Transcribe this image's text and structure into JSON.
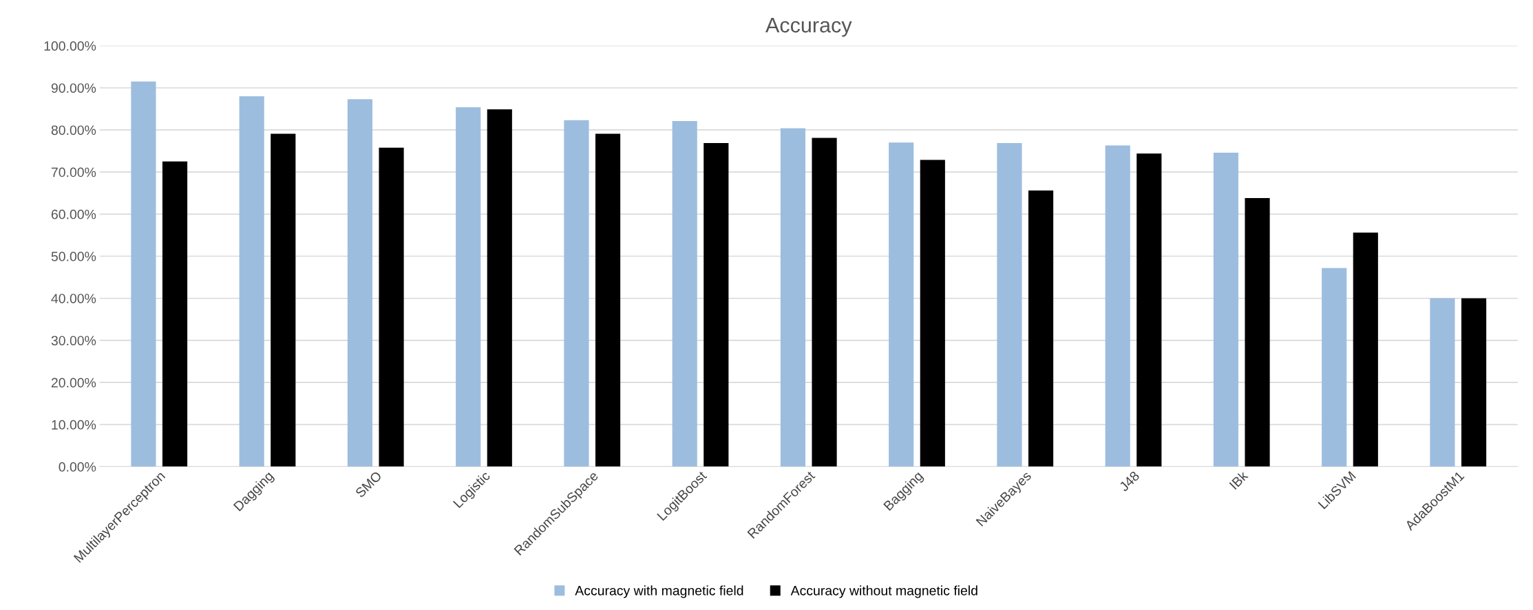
{
  "chart_data": {
    "type": "bar",
    "title": "Accuracy",
    "categories": [
      "MultilayerPerceptron",
      "Dagging",
      "SMO",
      "Logistic",
      "RandomSubSpace",
      "LogitBoost",
      "RandomForest",
      "Bagging",
      "NaiveBayes",
      "J48",
      "IBk",
      "LibSVM",
      "AdaBoostM1"
    ],
    "series": [
      {
        "name": "Accuracy with magnetic field",
        "color": "#9dbddf",
        "values": [
          91.5,
          88.0,
          87.3,
          85.4,
          82.3,
          82.1,
          80.4,
          77.0,
          76.9,
          76.3,
          74.6,
          47.2,
          40.0
        ]
      },
      {
        "name": "Accuracy without magnetic field",
        "color": "#000000",
        "values": [
          72.5,
          79.1,
          75.8,
          84.9,
          79.1,
          76.9,
          78.1,
          72.9,
          65.6,
          74.4,
          63.8,
          55.6,
          40.0
        ]
      }
    ],
    "ylim": [
      0,
      100
    ],
    "yticks": [
      {
        "value": 0,
        "label": "0.00%"
      },
      {
        "value": 10,
        "label": "10.00%"
      },
      {
        "value": 20,
        "label": "20.00%"
      },
      {
        "value": 30,
        "label": "30.00%"
      },
      {
        "value": 40,
        "label": "40.00%"
      },
      {
        "value": 50,
        "label": "50.00%"
      },
      {
        "value": 60,
        "label": "60.00%"
      },
      {
        "value": 70,
        "label": "70.00%"
      },
      {
        "value": 80,
        "label": "80.00%"
      },
      {
        "value": 90,
        "label": "90.00%"
      },
      {
        "value": 100,
        "label": "100.00%"
      }
    ],
    "grid": "y",
    "legend": "bottom"
  }
}
